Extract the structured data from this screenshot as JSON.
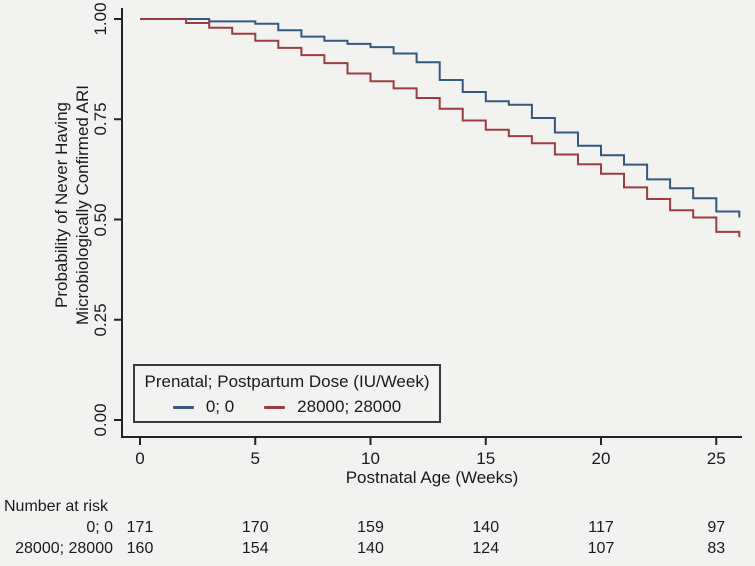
{
  "figure": {
    "background": "#f2f2f1",
    "axis_color": "#232323",
    "text_color": "#1a1a1a"
  },
  "y_axis": {
    "title_line1": "Probability of Never Having",
    "title_line2": "Microbiologically Confirmed ARI",
    "ticks": [
      "1.00",
      "0.75",
      "0.50",
      "0.25",
      "0.00"
    ]
  },
  "x_axis": {
    "title": "Postnatal Age (Weeks)",
    "ticks": [
      "0",
      "5",
      "10",
      "15",
      "20",
      "25"
    ]
  },
  "legend": {
    "title": "Prenatal; Postpartum Dose (IU/Week)",
    "entries": [
      {
        "label": "0; 0",
        "color": "#35587e"
      },
      {
        "label": "28000; 28000",
        "color": "#9d3c3e"
      }
    ]
  },
  "risk_table": {
    "header": "Number at risk",
    "rows": [
      {
        "label": "0; 0",
        "values": [
          "171",
          "170",
          "159",
          "140",
          "117",
          "97"
        ]
      },
      {
        "label": "28000; 28000",
        "values": [
          "160",
          "154",
          "140",
          "124",
          "107",
          "83"
        ]
      }
    ]
  },
  "chart_data": {
    "type": "line",
    "subtype": "kaplan-meier-step",
    "title": "",
    "xlabel": "Postnatal Age (Weeks)",
    "ylabel": "Probability of Never Having Microbiologically Confirmed ARI",
    "xlim": [
      0,
      26
    ],
    "ylim": [
      0,
      1
    ],
    "x_tick_values": [
      0,
      5,
      10,
      15,
      20,
      25
    ],
    "y_tick_values": [
      1.0,
      0.75,
      0.5,
      0.25,
      0.0
    ],
    "grid": false,
    "legend_position": "inside-bottom-left",
    "series": [
      {
        "name": "0; 0",
        "color": "#35587e",
        "steps": [
          [
            0,
            1.0
          ],
          [
            3,
            0.994
          ],
          [
            5,
            0.988
          ],
          [
            6,
            0.972
          ],
          [
            7,
            0.956
          ],
          [
            8,
            0.946
          ],
          [
            9,
            0.938
          ],
          [
            10,
            0.93
          ],
          [
            11,
            0.914
          ],
          [
            12,
            0.892
          ],
          [
            13,
            0.848
          ],
          [
            14,
            0.818
          ],
          [
            15,
            0.795
          ],
          [
            16,
            0.786
          ],
          [
            17,
            0.753
          ],
          [
            18,
            0.717
          ],
          [
            19,
            0.684
          ],
          [
            20,
            0.66
          ],
          [
            21,
            0.637
          ],
          [
            22,
            0.6
          ],
          [
            23,
            0.578
          ],
          [
            24,
            0.553
          ],
          [
            25,
            0.52
          ],
          [
            26,
            0.505
          ]
        ]
      },
      {
        "name": "28000; 28000",
        "color": "#9d3c3e",
        "steps": [
          [
            0,
            1.0
          ],
          [
            2,
            0.99
          ],
          [
            3,
            0.978
          ],
          [
            4,
            0.963
          ],
          [
            5,
            0.946
          ],
          [
            6,
            0.928
          ],
          [
            7,
            0.91
          ],
          [
            8,
            0.89
          ],
          [
            9,
            0.864
          ],
          [
            10,
            0.845
          ],
          [
            11,
            0.827
          ],
          [
            12,
            0.803
          ],
          [
            13,
            0.776
          ],
          [
            14,
            0.747
          ],
          [
            15,
            0.724
          ],
          [
            16,
            0.708
          ],
          [
            17,
            0.69
          ],
          [
            18,
            0.662
          ],
          [
            19,
            0.638
          ],
          [
            20,
            0.614
          ],
          [
            21,
            0.58
          ],
          [
            22,
            0.551
          ],
          [
            23,
            0.523
          ],
          [
            24,
            0.505
          ],
          [
            25,
            0.469
          ],
          [
            26,
            0.456
          ]
        ]
      }
    ],
    "number_at_risk": {
      "times": [
        0,
        5,
        10,
        15,
        20,
        25
      ],
      "groups": [
        {
          "name": "0; 0",
          "counts": [
            171,
            170,
            159,
            140,
            117,
            97
          ]
        },
        {
          "name": "28000; 28000",
          "counts": [
            160,
            154,
            140,
            124,
            107,
            83
          ]
        }
      ]
    }
  }
}
